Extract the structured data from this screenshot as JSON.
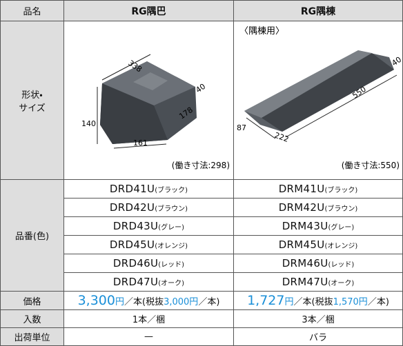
{
  "header": {
    "labels": [
      "品名",
      "RG隅巴",
      "RG隅棟"
    ]
  },
  "shape": {
    "label_lines": [
      "形状・",
      "サイズ"
    ],
    "left": {
      "dims": [
        "338",
        "178",
        "40",
        "140",
        "161"
      ],
      "note": "(働き寸法:298)"
    },
    "right": {
      "caption": "〈隅棟用〉",
      "dims": [
        "40",
        "550",
        "87",
        "222"
      ],
      "note": "(働き寸法:550)"
    }
  },
  "codes": {
    "label": "品番(色)",
    "rows": [
      [
        {
          "code": "DRD41U",
          "color": "(ブラック)"
        },
        {
          "code": "DRM41U",
          "color": "(ブラック)"
        }
      ],
      [
        {
          "code": "DRD42U",
          "color": "(ブラウン)"
        },
        {
          "code": "DRM42U",
          "color": "(ブラウン)"
        }
      ],
      [
        {
          "code": "DRD43U",
          "color": "(グレー)"
        },
        {
          "code": "DRM43U",
          "color": "(グレー)"
        }
      ],
      [
        {
          "code": "DRD45U",
          "color": "(オレンジ)"
        },
        {
          "code": "DRM45U",
          "color": "(オレンジ)"
        }
      ],
      [
        {
          "code": "DRD46U",
          "color": "(レッド)"
        },
        {
          "code": "DRM46U",
          "color": "(レッド)"
        }
      ],
      [
        {
          "code": "DRD47U",
          "color": "(オーク)"
        },
        {
          "code": "DRM47U",
          "color": "(オーク)"
        }
      ]
    ]
  },
  "price": {
    "label": "価格",
    "left": {
      "amount": "3,300",
      "yen": "円",
      "per": "／本(税抜",
      "tax_amount": "3,000円",
      "close": "／本)"
    },
    "right": {
      "amount": "1,727",
      "yen": "円",
      "per": "／本(税抜",
      "tax_amount": "1,570円",
      "close": "／本)"
    }
  },
  "quantity": {
    "label": "入数",
    "left": "1本／梱",
    "right": "3本／梱"
  },
  "unit": {
    "label": "出荷単位",
    "left": "—",
    "right": "バラ"
  }
}
